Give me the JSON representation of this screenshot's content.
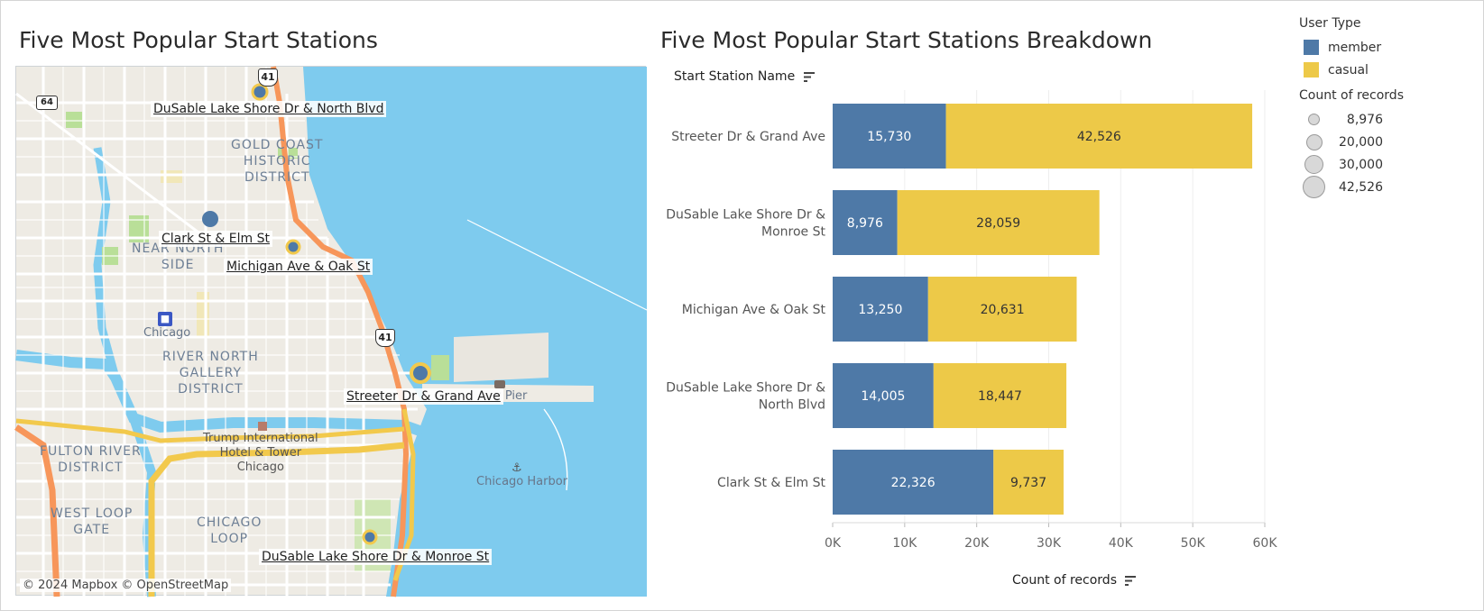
{
  "map": {
    "title": "Five Most Popular Start Stations",
    "attribution": "© 2024 Mapbox  © OpenStreetMap",
    "area_labels": [
      "GOLD COAST\nHISTORIC\nDISTRICT",
      "NEAR NORTH\nSIDE",
      "RIVER NORTH\nGALLERY\nDISTRICT",
      "FULTON RIVER\nDISTRICT",
      "WEST LOOP\nGATE",
      "CHICAGO\nLOOP"
    ],
    "poi_labels": [
      "Chicago",
      "Trump International\nHotel & Tower\nChicago",
      "Chicago Harbor",
      "y Pier"
    ],
    "route_shields": [
      "41",
      "41",
      "64"
    ],
    "stations": [
      {
        "name": "DuSable Lake Shore Dr & North Blvd",
        "records": 32452
      },
      {
        "name": "Clark St & Elm St",
        "records": 32063
      },
      {
        "name": "Michigan Ave & Oak St",
        "records": 33881
      },
      {
        "name": "Streeter Dr & Grand Ave",
        "records": 58256
      },
      {
        "name": "DuSable Lake Shore Dr & Monroe St",
        "records": 37035
      }
    ],
    "colors": {
      "water": "#7ecbee",
      "land": "#eeebe4",
      "park": "#b9df98",
      "highway": "#f2c94c",
      "interstate": "#f7965a",
      "station": "#4e79a7"
    }
  },
  "legend": {
    "color_title": "User Type",
    "color_items": [
      {
        "label": "member",
        "color": "#4e79a7"
      },
      {
        "label": "casual",
        "color": "#edc948"
      }
    ],
    "size_title": "Count of records",
    "size_items": [
      "8,976",
      "20,000",
      "30,000",
      "42,526"
    ]
  },
  "chart_data": {
    "type": "bar",
    "orientation": "horizontal",
    "stacked": true,
    "title": "Five Most Popular Start Stations Breakdown",
    "ylabel": "Start Station Name",
    "xlabel": "Count of records",
    "categories": [
      "Streeter Dr & Grand Ave",
      "DuSable Lake Shore Dr & Monroe St",
      "Michigan Ave & Oak St",
      "DuSable Lake Shore Dr & North Blvd",
      "Clark St & Elm St"
    ],
    "category_display": [
      [
        "Streeter Dr & Grand Ave"
      ],
      [
        "DuSable Lake Shore Dr &",
        "Monroe St"
      ],
      [
        "Michigan Ave & Oak St"
      ],
      [
        "DuSable Lake Shore Dr &",
        "North Blvd"
      ],
      [
        "Clark St & Elm St"
      ]
    ],
    "series": [
      {
        "name": "member",
        "color": "#4e79a7",
        "values": [
          15730,
          8976,
          13250,
          14005,
          22326
        ],
        "labels": [
          "15,730",
          "8,976",
          "13,250",
          "14,005",
          "22,326"
        ]
      },
      {
        "name": "casual",
        "color": "#edc948",
        "values": [
          42526,
          28059,
          20631,
          18447,
          9737
        ],
        "labels": [
          "42,526",
          "28,059",
          "20,631",
          "18,447",
          "9,737"
        ]
      }
    ],
    "xlim": [
      0,
      60000
    ],
    "ticks": [
      0,
      10000,
      20000,
      30000,
      40000,
      50000,
      60000
    ],
    "tick_labels": [
      "0K",
      "10K",
      "20K",
      "30K",
      "40K",
      "50K",
      "60K"
    ],
    "grid": true,
    "legend": "right"
  }
}
